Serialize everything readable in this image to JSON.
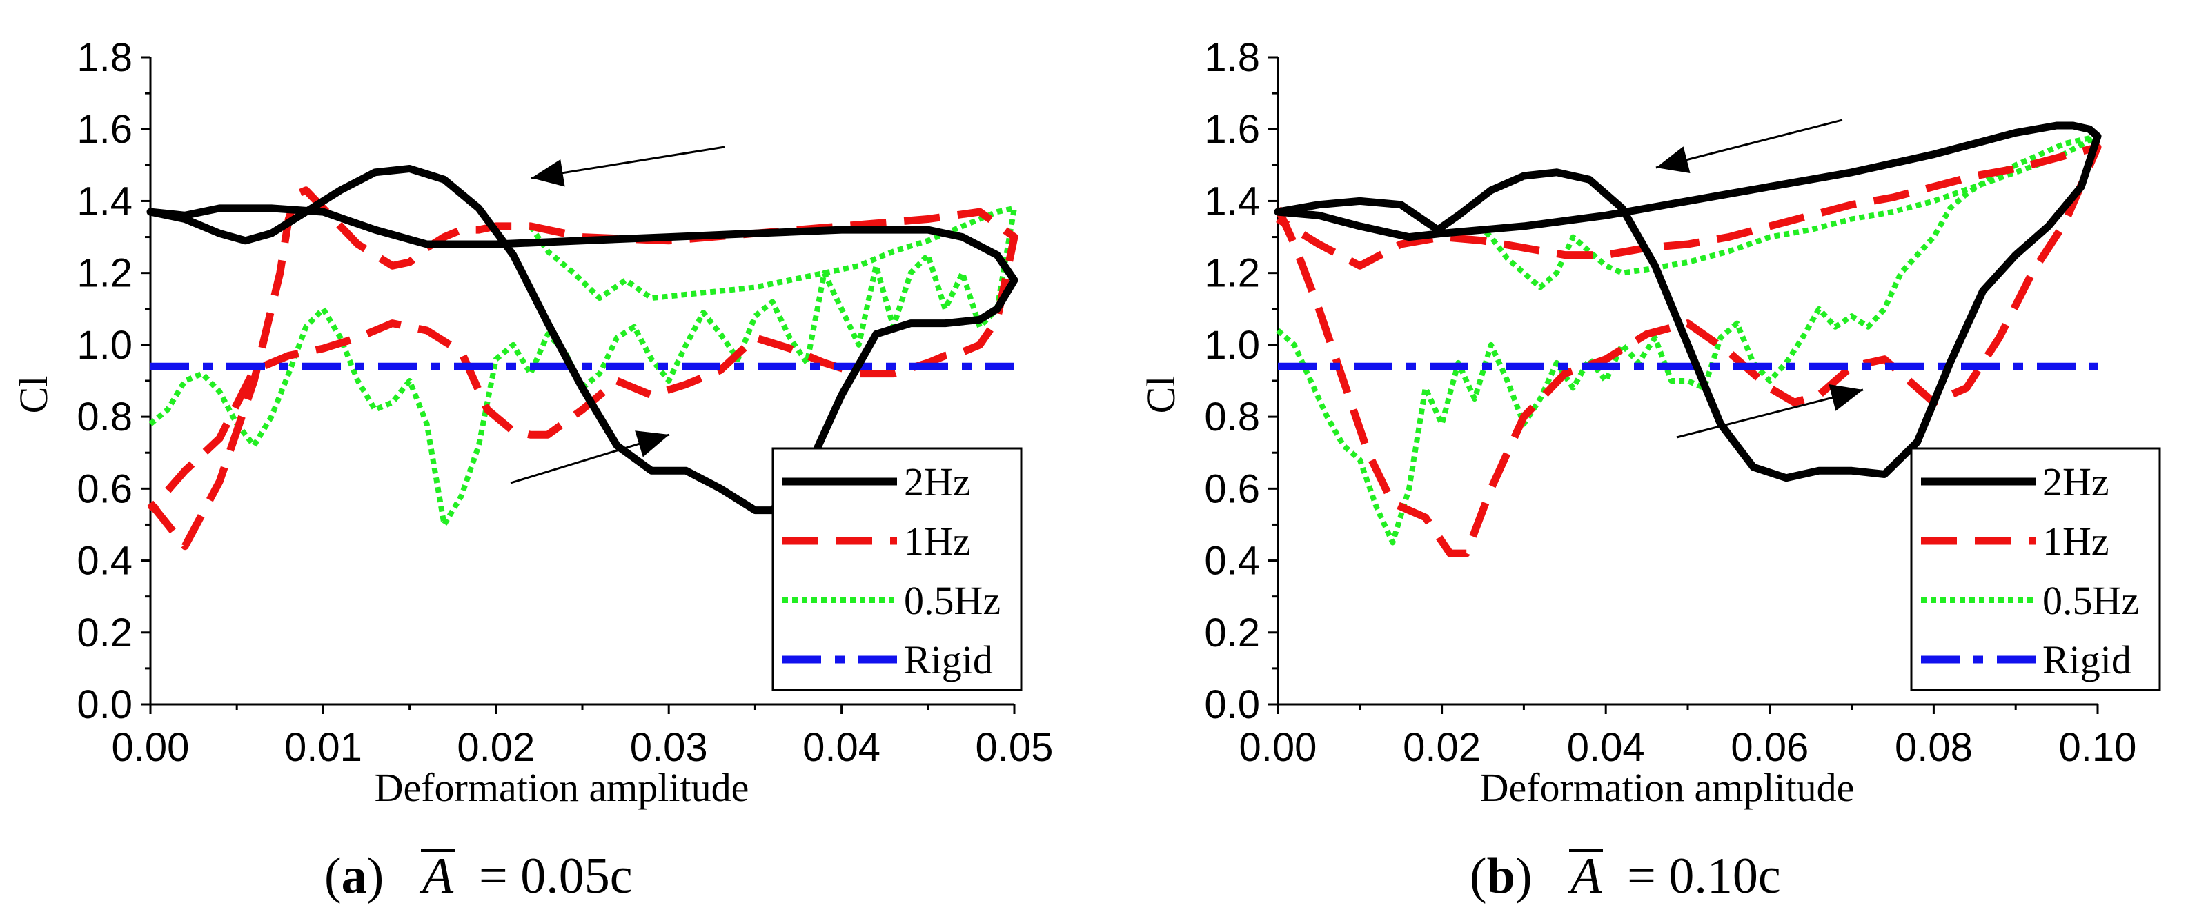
{
  "chart_data": [
    {
      "panel": "a",
      "type": "line",
      "xlabel": "Deformation amplitude",
      "ylabel": "Cl",
      "xlim": [
        0,
        0.05
      ],
      "ylim": [
        0,
        1.8
      ],
      "xticks": [
        "0.00",
        "0.01",
        "0.02",
        "0.03",
        "0.04",
        "0.05"
      ],
      "yticks": [
        "0.0",
        "0.2",
        "0.4",
        "0.6",
        "0.8",
        "1.0",
        "1.2",
        "1.4",
        "1.6",
        "1.8"
      ],
      "legend": [
        "2Hz",
        "1Hz",
        "0.5Hz",
        "Rigid"
      ],
      "caption": {
        "label": "a",
        "symbol": "A",
        "value": "= 0.05c"
      },
      "series": [
        {
          "name": "2Hz",
          "x": [
            0,
            0.002,
            0.004,
            0.0055,
            0.007,
            0.009,
            0.011,
            0.013,
            0.015,
            0.017,
            0.019,
            0.021,
            0.023,
            0.025,
            0.027,
            0.029,
            0.031,
            0.033,
            0.035,
            0.036,
            0.038,
            0.04,
            0.042,
            0.044,
            0.046,
            0.048,
            0.049,
            0.05,
            0.049,
            0.047,
            0.045,
            0.043,
            0.04,
            0.035,
            0.03,
            0.025,
            0.02,
            0.017,
            0.016,
            0.013,
            0.01,
            0.007,
            0.004,
            0.002,
            0
          ],
          "y": [
            1.37,
            1.35,
            1.31,
            1.29,
            1.31,
            1.37,
            1.43,
            1.48,
            1.49,
            1.46,
            1.38,
            1.25,
            1.06,
            0.88,
            0.72,
            0.65,
            0.65,
            0.6,
            0.54,
            0.54,
            0.65,
            0.86,
            1.03,
            1.06,
            1.06,
            1.07,
            1.1,
            1.18,
            1.25,
            1.3,
            1.32,
            1.32,
            1.32,
            1.31,
            1.3,
            1.29,
            1.28,
            1.28,
            1.28,
            1.32,
            1.37,
            1.38,
            1.38,
            1.36,
            1.37
          ]
        },
        {
          "name": "1Hz",
          "x": [
            0,
            0.001,
            0.002,
            0.004,
            0.006,
            0.0075,
            0.008,
            0.0085,
            0.009,
            0.01,
            0.012,
            0.014,
            0.015,
            0.016,
            0.017,
            0.018,
            0.019,
            0.02,
            0.021,
            0.022,
            0.025,
            0.03,
            0.035,
            0.04,
            0.045,
            0.048,
            0.05,
            0.049,
            0.048,
            0.047,
            0.046,
            0.045,
            0.043,
            0.041,
            0.039,
            0.037,
            0.035,
            0.033,
            0.031,
            0.029,
            0.027,
            0.025,
            0.023,
            0.022,
            0.021,
            0.0195,
            0.018,
            0.016,
            0.014,
            0.012,
            0.01,
            0.008,
            0.006,
            0.004,
            0.002,
            0
          ],
          "y": [
            0.56,
            0.5,
            0.44,
            0.62,
            0.9,
            1.2,
            1.35,
            1.42,
            1.43,
            1.38,
            1.28,
            1.22,
            1.23,
            1.27,
            1.3,
            1.32,
            1.32,
            1.33,
            1.33,
            1.33,
            1.3,
            1.29,
            1.31,
            1.33,
            1.35,
            1.37,
            1.3,
            1.07,
            1.0,
            0.98,
            0.97,
            0.95,
            0.92,
            0.92,
            0.95,
            0.99,
            1.02,
            0.93,
            0.89,
            0.86,
            0.9,
            0.82,
            0.75,
            0.75,
            0.76,
            0.82,
            0.98,
            1.04,
            1.06,
            1.02,
            0.99,
            0.97,
            0.93,
            0.74,
            0.65,
            0.54
          ]
        },
        {
          "name": "0.5Hz",
          "x": [
            0,
            0.001,
            0.002,
            0.003,
            0.004,
            0.005,
            0.006,
            0.007,
            0.008,
            0.009,
            0.01,
            0.011,
            0.012,
            0.013,
            0.014,
            0.015,
            0.016,
            0.017,
            0.018,
            0.019,
            0.02,
            0.021,
            0.022,
            0.023,
            0.024,
            0.025,
            0.026,
            0.027,
            0.028,
            0.029,
            0.03,
            0.031,
            0.032,
            0.033,
            0.034,
            0.035,
            0.036,
            0.037,
            0.038,
            0.039,
            0.04,
            0.041,
            0.042,
            0.043,
            0.044,
            0.045,
            0.046,
            0.047,
            0.048,
            0.049,
            0.05,
            0.049,
            0.047,
            0.045,
            0.043,
            0.041,
            0.039,
            0.037,
            0.035,
            0.033,
            0.031,
            0.029,
            0.0275,
            0.026,
            0.0245,
            0.023,
            0.022
          ],
          "y": [
            0.78,
            0.82,
            0.9,
            0.92,
            0.87,
            0.78,
            0.72,
            0.8,
            0.92,
            1.05,
            1.1,
            1.02,
            0.9,
            0.82,
            0.84,
            0.9,
            0.78,
            0.5,
            0.58,
            0.72,
            0.96,
            1.0,
            0.92,
            1.03,
            0.98,
            0.88,
            0.92,
            1.02,
            1.05,
            0.96,
            0.9,
            1.0,
            1.09,
            1.03,
            0.96,
            1.08,
            1.12,
            1.02,
            0.95,
            1.2,
            1.1,
            1.0,
            1.22,
            1.05,
            1.2,
            1.25,
            1.1,
            1.2,
            1.05,
            1.1,
            1.38,
            1.37,
            1.33,
            1.29,
            1.26,
            1.22,
            1.2,
            1.18,
            1.16,
            1.15,
            1.14,
            1.13,
            1.18,
            1.13,
            1.2,
            1.26,
            1.33
          ]
        },
        {
          "name": "Rigid",
          "x": [
            0,
            0.05
          ],
          "y": [
            0.94,
            0.94
          ]
        }
      ]
    },
    {
      "panel": "b",
      "type": "line",
      "xlabel": "Deformation amplitude",
      "ylabel": "Cl",
      "xlim": [
        0,
        0.1
      ],
      "ylim": [
        0,
        1.8
      ],
      "xticks": [
        "0.00",
        "0.02",
        "0.04",
        "0.06",
        "0.08",
        "0.10"
      ],
      "yticks": [
        "0.0",
        "0.2",
        "0.4",
        "0.6",
        "0.8",
        "1.0",
        "1.2",
        "1.4",
        "1.6",
        "1.8"
      ],
      "legend": [
        "2Hz",
        "1Hz",
        "0.5Hz",
        "Rigid"
      ],
      "caption": {
        "label": "b",
        "symbol": "A",
        "value": "= 0.10c"
      },
      "series": [
        {
          "name": "2Hz",
          "x": [
            0,
            0.005,
            0.01,
            0.015,
            0.0195,
            0.022,
            0.026,
            0.03,
            0.034,
            0.038,
            0.042,
            0.046,
            0.05,
            0.054,
            0.058,
            0.062,
            0.066,
            0.07,
            0.074,
            0.078,
            0.082,
            0.086,
            0.09,
            0.094,
            0.098,
            0.1,
            0.099,
            0.097,
            0.095,
            0.09,
            0.085,
            0.08,
            0.07,
            0.06,
            0.05,
            0.04,
            0.03,
            0.025,
            0.02,
            0.016,
            0.01,
            0.005,
            0
          ],
          "y": [
            1.37,
            1.39,
            1.4,
            1.39,
            1.32,
            1.36,
            1.43,
            1.47,
            1.48,
            1.46,
            1.38,
            1.22,
            1.0,
            0.78,
            0.66,
            0.63,
            0.65,
            0.65,
            0.64,
            0.73,
            0.95,
            1.15,
            1.25,
            1.33,
            1.44,
            1.58,
            1.6,
            1.61,
            1.61,
            1.59,
            1.56,
            1.53,
            1.48,
            1.44,
            1.4,
            1.36,
            1.33,
            1.32,
            1.31,
            1.3,
            1.33,
            1.36,
            1.37
          ]
        },
        {
          "name": "1Hz",
          "x": [
            0,
            0.002,
            0.005,
            0.008,
            0.011,
            0.014,
            0.018,
            0.021,
            0.023,
            0.026,
            0.03,
            0.035,
            0.04,
            0.045,
            0.05,
            0.055,
            0.06,
            0.063,
            0.066,
            0.07,
            0.074,
            0.077,
            0.08,
            0.084,
            0.088,
            0.092,
            0.096,
            0.1,
            0.095,
            0.09,
            0.085,
            0.08,
            0.075,
            0.07,
            0.065,
            0.06,
            0.055,
            0.05,
            0.045,
            0.04,
            0.035,
            0.03,
            0.025,
            0.02,
            0.015,
            0.01,
            0.005,
            0
          ],
          "y": [
            1.38,
            1.28,
            1.1,
            0.9,
            0.7,
            0.56,
            0.52,
            0.42,
            0.42,
            0.6,
            0.8,
            0.92,
            0.96,
            1.03,
            1.06,
            0.98,
            0.88,
            0.84,
            0.86,
            0.94,
            0.96,
            0.9,
            0.84,
            0.88,
            1.02,
            1.2,
            1.34,
            1.55,
            1.52,
            1.49,
            1.47,
            1.44,
            1.41,
            1.39,
            1.36,
            1.33,
            1.3,
            1.28,
            1.27,
            1.25,
            1.25,
            1.27,
            1.29,
            1.3,
            1.28,
            1.22,
            1.28,
            1.35
          ]
        },
        {
          "name": "0.5Hz",
          "x": [
            0,
            0.002,
            0.004,
            0.006,
            0.008,
            0.01,
            0.012,
            0.014,
            0.016,
            0.018,
            0.02,
            0.022,
            0.024,
            0.026,
            0.028,
            0.03,
            0.032,
            0.034,
            0.036,
            0.038,
            0.04,
            0.042,
            0.044,
            0.046,
            0.048,
            0.05,
            0.052,
            0.054,
            0.056,
            0.058,
            0.06,
            0.062,
            0.064,
            0.066,
            0.068,
            0.07,
            0.072,
            0.074,
            0.076,
            0.078,
            0.08,
            0.082,
            0.084,
            0.086,
            0.088,
            0.09,
            0.092,
            0.094,
            0.096,
            0.098,
            0.1,
            0.095,
            0.09,
            0.085,
            0.08,
            0.075,
            0.07,
            0.065,
            0.06,
            0.055,
            0.05,
            0.045,
            0.042,
            0.04,
            0.038,
            0.036,
            0.034,
            0.032,
            0.03,
            0.028,
            0.026,
            0.025
          ],
          "y": [
            1.04,
            1.0,
            0.9,
            0.8,
            0.72,
            0.68,
            0.55,
            0.45,
            0.6,
            0.88,
            0.78,
            0.95,
            0.85,
            1.0,
            0.9,
            0.78,
            0.85,
            0.95,
            0.88,
            0.96,
            0.9,
            1.0,
            0.95,
            1.02,
            0.9,
            0.9,
            0.88,
            1.02,
            1.06,
            0.95,
            0.9,
            0.95,
            1.02,
            1.1,
            1.05,
            1.08,
            1.05,
            1.1,
            1.2,
            1.25,
            1.3,
            1.38,
            1.42,
            1.45,
            1.48,
            1.5,
            1.52,
            1.54,
            1.56,
            1.57,
            1.58,
            1.52,
            1.48,
            1.44,
            1.4,
            1.37,
            1.35,
            1.32,
            1.3,
            1.26,
            1.23,
            1.21,
            1.2,
            1.22,
            1.26,
            1.3,
            1.2,
            1.16,
            1.2,
            1.24,
            1.3,
            1.32
          ]
        },
        {
          "name": "Rigid",
          "x": [
            0,
            0.1
          ],
          "y": [
            0.94,
            0.94
          ]
        }
      ]
    }
  ]
}
